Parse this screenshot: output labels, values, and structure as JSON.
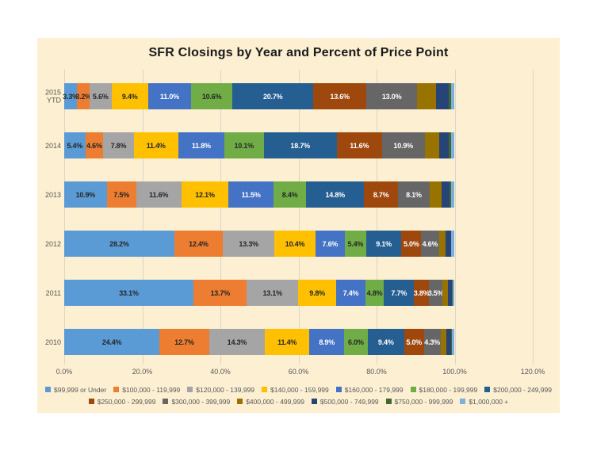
{
  "chart_data": {
    "type": "bar",
    "orientation": "horizontal",
    "stacked": true,
    "title": "SFR Closings by Year and Percent of Price Point",
    "categories": [
      "2015 YTD",
      "2014",
      "2013",
      "2012",
      "2011",
      "2010"
    ],
    "series": [
      {
        "name": "$99,999 or Under",
        "color": "#5B9BD5",
        "label_color": "#262626",
        "labeled": true,
        "values": [
          3.3,
          5.4,
          10.9,
          28.2,
          33.1,
          24.4
        ]
      },
      {
        "name": "$100,000 - 119,999",
        "color": "#ED7D31",
        "label_color": "#262626",
        "labeled": true,
        "values": [
          3.2,
          4.6,
          7.5,
          12.4,
          13.7,
          12.7
        ]
      },
      {
        "name": "$120,000 - 139,999",
        "color": "#A5A5A5",
        "label_color": "#262626",
        "labeled": true,
        "values": [
          5.6,
          7.8,
          11.6,
          13.3,
          13.1,
          14.3
        ]
      },
      {
        "name": "$140,000 - 159,999",
        "color": "#FFC000",
        "label_color": "#262626",
        "labeled": true,
        "values": [
          9.4,
          11.4,
          12.1,
          10.4,
          9.8,
          11.4
        ]
      },
      {
        "name": "$160,000 - 179,999",
        "color": "#4472C4",
        "label_color": "#FFFFFF",
        "labeled": true,
        "values": [
          11.0,
          11.8,
          11.5,
          7.6,
          7.4,
          8.9
        ]
      },
      {
        "name": "$180,000 - 199,999",
        "color": "#70AD47",
        "label_color": "#262626",
        "labeled": true,
        "values": [
          10.6,
          10.1,
          8.4,
          5.4,
          4.8,
          6.0
        ]
      },
      {
        "name": "$200,000 - 249,999",
        "color": "#255E91",
        "label_color": "#FFFFFF",
        "labeled": true,
        "values": [
          20.7,
          18.7,
          14.8,
          9.1,
          7.7,
          9.4
        ]
      },
      {
        "name": "$250,000 - 299,999",
        "color": "#9E480E",
        "label_color": "#FFFFFF",
        "labeled": true,
        "values": [
          13.6,
          11.6,
          8.7,
          5.0,
          3.8,
          5.0
        ]
      },
      {
        "name": "$300,000 - 399,999",
        "color": "#666666",
        "label_color": "#FFFFFF",
        "labeled": true,
        "values": [
          13.0,
          10.9,
          8.1,
          4.6,
          3.5,
          4.3
        ]
      },
      {
        "name": "$400,000 - 499,999",
        "color": "#997300",
        "label_color": "#FFFFFF",
        "labeled": false,
        "values": [
          4.8,
          3.8,
          3.0,
          1.7,
          1.4,
          1.5
        ]
      },
      {
        "name": "$500,000 - 749,999",
        "color": "#264478",
        "label_color": "#FFFFFF",
        "labeled": false,
        "values": [
          3.2,
          2.4,
          2.1,
          1.4,
          1.1,
          1.3
        ]
      },
      {
        "name": "$750,000 - 999,999",
        "color": "#43682B",
        "label_color": "#FFFFFF",
        "labeled": false,
        "values": [
          0.7,
          0.7,
          0.5,
          0.1,
          0.2,
          0.2
        ]
      },
      {
        "name": "$1,000,000 +",
        "color": "#7CAFDD",
        "label_color": "#262626",
        "labeled": false,
        "values": [
          0.9,
          0.8,
          0.8,
          0.8,
          0.4,
          0.6
        ]
      }
    ],
    "xlabel": "",
    "ylabel": "",
    "x_axis": {
      "ticks": [
        "0.0%",
        "20.0%",
        "40.0%",
        "60.0%",
        "80.0%",
        "100.0%",
        "120.0%"
      ],
      "min": 0,
      "max": 120,
      "grid": true
    },
    "legend_position": "bottom",
    "legend_rows": [
      [
        0,
        1,
        2,
        3,
        4,
        5,
        6
      ],
      [
        7,
        8,
        9,
        10,
        11,
        12
      ]
    ],
    "data_label_format": "0.0%"
  },
  "style": {
    "plot_background": "#FCEFD2",
    "gridline_color": "#DBD6C8",
    "axis_text_color": "#595959",
    "title_color": "#1A1A1A"
  }
}
